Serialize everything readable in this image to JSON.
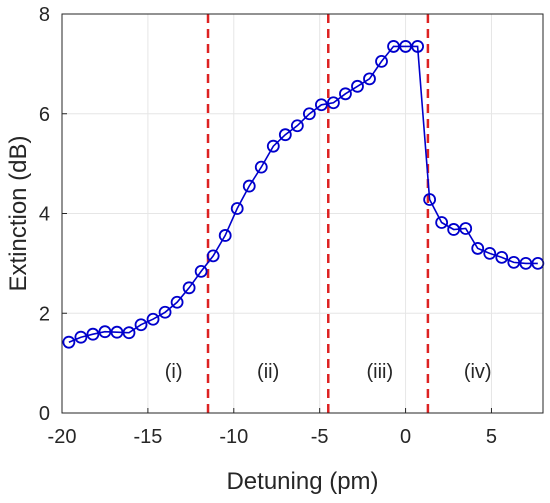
{
  "chart_data": {
    "type": "line",
    "title": "",
    "xlabel": "Detuning (pm)",
    "ylabel": "Extinction (dB)",
    "xlim": [
      -20,
      8
    ],
    "ylim": [
      0,
      8
    ],
    "xticks": [
      -20,
      -15,
      -10,
      -5,
      0,
      5
    ],
    "yticks": [
      0,
      2,
      4,
      6,
      8
    ],
    "grid": true,
    "series": [
      {
        "color": "#0000cc",
        "marker": "circle",
        "x": [
          -19.6,
          -18.9,
          -18.2,
          -17.5,
          -16.8,
          -16.1,
          -15.4,
          -14.7,
          -14.0,
          -13.3,
          -12.6,
          -11.9,
          -11.2,
          -10.5,
          -9.8,
          -9.1,
          -8.4,
          -7.7,
          -7.0,
          -6.3,
          -5.6,
          -4.9,
          -4.2,
          -3.5,
          -2.8,
          -2.1,
          -1.4,
          -0.7,
          0.0,
          0.7,
          1.4,
          2.1,
          2.8,
          3.5,
          4.2,
          4.9,
          5.6,
          6.3,
          7.0,
          7.7
        ],
        "y": [
          1.42,
          1.52,
          1.58,
          1.63,
          1.62,
          1.61,
          1.77,
          1.88,
          2.02,
          2.22,
          2.51,
          2.84,
          3.15,
          3.56,
          4.1,
          4.55,
          4.93,
          5.35,
          5.58,
          5.76,
          6.0,
          6.18,
          6.22,
          6.4,
          6.55,
          6.7,
          7.05,
          7.35,
          7.35,
          7.35,
          4.28,
          3.82,
          3.68,
          3.7,
          3.3,
          3.2,
          3.12,
          3.02,
          3.0,
          3.0
        ]
      }
    ],
    "vlines": {
      "x": [
        -11.5,
        -4.5,
        1.3
      ],
      "color": "#dd2222",
      "style": "dashed"
    },
    "annotations": [
      {
        "text": "(i)",
        "x": -13.5,
        "y": 0.7
      },
      {
        "text": "(ii)",
        "x": -8.0,
        "y": 0.7
      },
      {
        "text": "(iii)",
        "x": -1.5,
        "y": 0.7
      },
      {
        "text": "(iv)",
        "x": 4.2,
        "y": 0.7
      }
    ]
  }
}
